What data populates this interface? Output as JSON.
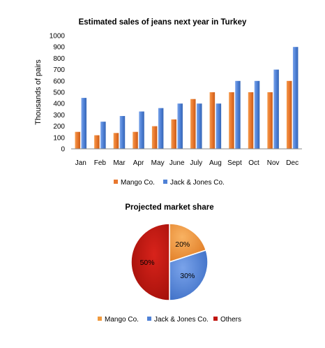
{
  "chart_data": [
    {
      "type": "bar",
      "title": "Estimated sales of jeans next year in Turkey",
      "xlabel": "",
      "ylabel": "Thousands of pairs",
      "ylim": [
        0,
        1000
      ],
      "yticks": [
        0,
        100,
        200,
        300,
        400,
        500,
        600,
        700,
        800,
        900,
        1000
      ],
      "grid": false,
      "legend": "bottom",
      "categories": [
        "Jan",
        "Feb",
        "Mar",
        "Apr",
        "May",
        "June",
        "July",
        "Aug",
        "Sept",
        "Oct",
        "Nov",
        "Dec"
      ],
      "series": [
        {
          "name": "Mango Co.",
          "color": "#e8772e",
          "values": [
            150,
            120,
            140,
            150,
            200,
            260,
            440,
            500,
            500,
            500,
            500,
            600
          ]
        },
        {
          "name": "Jack & Jones Co.",
          "color": "#4f81d6",
          "values": [
            450,
            240,
            290,
            330,
            360,
            400,
            400,
            400,
            600,
            600,
            700,
            900
          ]
        }
      ]
    },
    {
      "type": "pie",
      "title": "Projected market share",
      "legend": "bottom",
      "slices": [
        {
          "name": "Mango Co.",
          "value": 20,
          "label": "20%",
          "color": "#f09a3e"
        },
        {
          "name": "Jack & Jones Co.",
          "value": 30,
          "label": "30%",
          "color": "#4f81d6"
        },
        {
          "name": "Others",
          "value": 50,
          "label": "50%",
          "color": "#c0150f"
        }
      ]
    }
  ]
}
